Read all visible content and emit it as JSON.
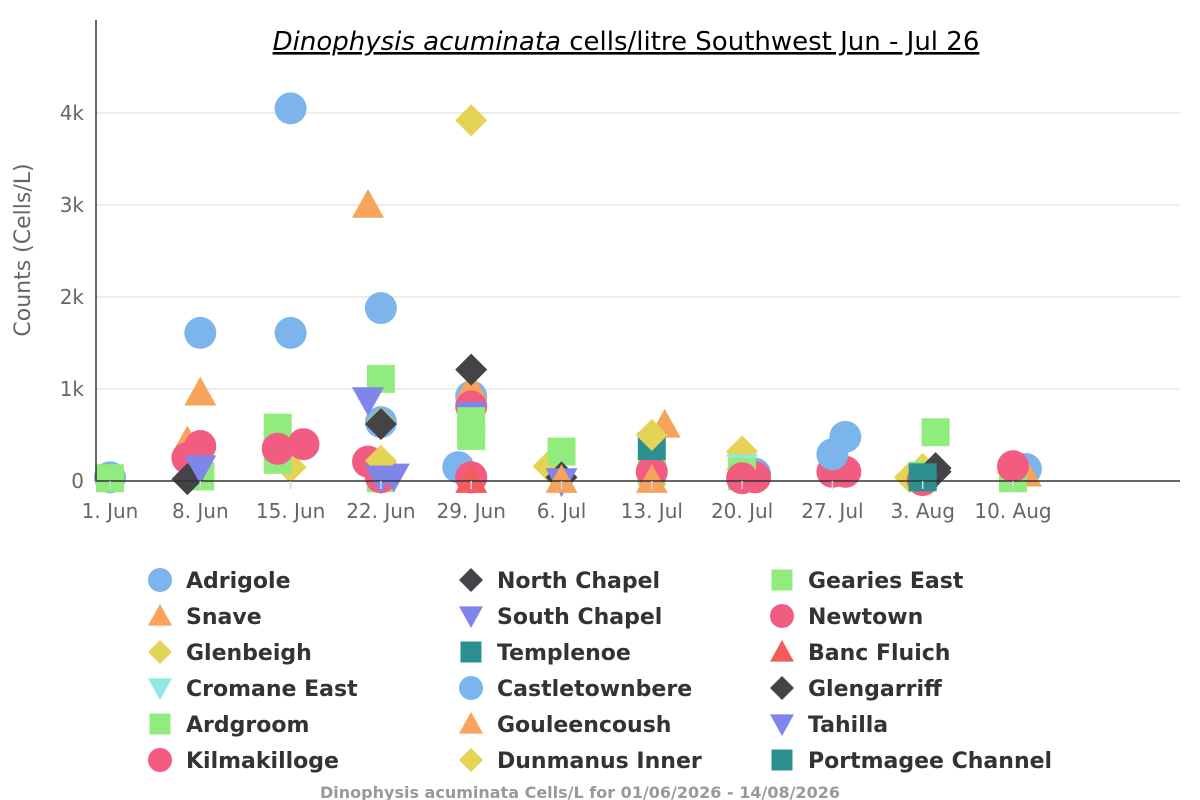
{
  "chart_data": {
    "type": "scatter",
    "title_italic": "Dinophysis acuminata",
    "title_rest": " cells/litre Southwest Jun - Jul 26",
    "xlabel": "",
    "ylabel": "Counts (Cells/L)",
    "footer": "Dinophysis acuminata Cells/L for 01/06/2026 - 14/08/2026",
    "x_ticks": [
      {
        "date": "2026-06-01",
        "label": "1. Jun"
      },
      {
        "date": "2026-06-08",
        "label": "8. Jun"
      },
      {
        "date": "2026-06-15",
        "label": "15. Jun"
      },
      {
        "date": "2026-06-22",
        "label": "22. Jun"
      },
      {
        "date": "2026-06-29",
        "label": "29. Jun"
      },
      {
        "date": "2026-07-06",
        "label": "6. Jul"
      },
      {
        "date": "2026-07-13",
        "label": "13. Jul"
      },
      {
        "date": "2026-07-20",
        "label": "20. Jul"
      },
      {
        "date": "2026-07-27",
        "label": "27. Jul"
      },
      {
        "date": "2026-08-03",
        "label": "3. Aug"
      },
      {
        "date": "2026-08-10",
        "label": "10. Aug"
      }
    ],
    "y_ticks": [
      {
        "value": 0,
        "label": "0"
      },
      {
        "value": 1000,
        "label": "1k"
      },
      {
        "value": 2000,
        "label": "2k"
      },
      {
        "value": 3000,
        "label": "3k"
      },
      {
        "value": 4000,
        "label": "4k"
      }
    ],
    "xlim": [
      "2026-06-01",
      "2026-08-14"
    ],
    "ylim": [
      0,
      5000
    ],
    "grid": "horizontal",
    "legend_position": "bottom",
    "series": [
      {
        "name": "Adrigole",
        "marker": "circle",
        "color": "#7cb5ec",
        "points": [
          {
            "x": "2026-06-01",
            "y": 40
          },
          {
            "x": "2026-06-08",
            "y": 1610
          },
          {
            "x": "2026-06-15",
            "y": 4050
          },
          {
            "x": "2026-06-15",
            "y": 1610
          },
          {
            "x": "2026-06-22",
            "y": 1880
          },
          {
            "x": "2026-06-22",
            "y": 640
          },
          {
            "x": "2026-06-29",
            "y": 920
          },
          {
            "x": "2026-06-28",
            "y": 150
          },
          {
            "x": "2026-07-21",
            "y": 80
          },
          {
            "x": "2026-07-28",
            "y": 480
          },
          {
            "x": "2026-08-11",
            "y": 130
          }
        ]
      },
      {
        "name": "Snave",
        "marker": "triangle",
        "color": "#f7a35c",
        "points": [
          {
            "x": "2026-06-08",
            "y": 960
          },
          {
            "x": "2026-06-07",
            "y": 430
          },
          {
            "x": "2026-06-21",
            "y": 3000
          },
          {
            "x": "2026-06-29",
            "y": 1020
          },
          {
            "x": "2026-07-14",
            "y": 610
          },
          {
            "x": "2026-08-11",
            "y": 80
          }
        ]
      },
      {
        "name": "Glenbeigh",
        "marker": "diamond",
        "color": "#e4d354",
        "points": [
          {
            "x": "2026-06-14",
            "y": 400
          },
          {
            "x": "2026-06-15",
            "y": 150
          },
          {
            "x": "2026-06-22",
            "y": 630
          },
          {
            "x": "2026-06-22",
            "y": 200
          },
          {
            "x": "2026-06-29",
            "y": 3920
          },
          {
            "x": "2026-07-05",
            "y": 160
          },
          {
            "x": "2026-07-20",
            "y": 320
          },
          {
            "x": "2026-07-20",
            "y": 130
          },
          {
            "x": "2026-07-27",
            "y": 250
          },
          {
            "x": "2026-08-02",
            "y": 40
          },
          {
            "x": "2026-08-03",
            "y": 130
          },
          {
            "x": "2026-08-10",
            "y": 90
          }
        ]
      },
      {
        "name": "Cromane East",
        "marker": "triangle-down",
        "color": "#91e8e1",
        "points": [
          {
            "x": "2026-07-20",
            "y": 150
          }
        ]
      },
      {
        "name": "Ardgroom",
        "marker": "square",
        "color": "#90ed7d",
        "points": [
          {
            "x": "2026-06-01",
            "y": 30
          },
          {
            "x": "2026-06-08",
            "y": 50
          },
          {
            "x": "2026-06-14",
            "y": 580
          },
          {
            "x": "2026-06-14",
            "y": 230
          },
          {
            "x": "2026-06-22",
            "y": 1110
          },
          {
            "x": "2026-06-22",
            "y": 30
          },
          {
            "x": "2026-06-29",
            "y": 490
          },
          {
            "x": "2026-07-06",
            "y": 320
          },
          {
            "x": "2026-07-13",
            "y": 100
          },
          {
            "x": "2026-07-20",
            "y": 50
          },
          {
            "x": "2026-08-03",
            "y": 60
          },
          {
            "x": "2026-08-10",
            "y": 30
          }
        ]
      },
      {
        "name": "Kilmakilloge",
        "marker": "circle",
        "color": "#f15c80",
        "points": [
          {
            "x": "2026-06-07",
            "y": 250
          },
          {
            "x": "2026-06-08",
            "y": 380
          },
          {
            "x": "2026-06-14",
            "y": 350
          },
          {
            "x": "2026-06-16",
            "y": 400
          },
          {
            "x": "2026-06-21",
            "y": 210
          },
          {
            "x": "2026-06-22",
            "y": 40
          },
          {
            "x": "2026-06-29",
            "y": 810
          },
          {
            "x": "2026-06-29",
            "y": 40
          },
          {
            "x": "2026-07-13",
            "y": 100
          },
          {
            "x": "2026-07-21",
            "y": 40
          },
          {
            "x": "2026-07-27",
            "y": 100
          },
          {
            "x": "2026-07-28",
            "y": 100
          },
          {
            "x": "2026-08-03",
            "y": 10
          },
          {
            "x": "2026-08-10",
            "y": 160
          }
        ]
      },
      {
        "name": "North Chapel",
        "marker": "diamond",
        "color": "#434348",
        "points": [
          {
            "x": "2026-06-07",
            "y": 20
          },
          {
            "x": "2026-06-29",
            "y": 1210
          },
          {
            "x": "2026-07-06",
            "y": 40
          },
          {
            "x": "2026-08-04",
            "y": 140
          }
        ]
      },
      {
        "name": "South Chapel",
        "marker": "triangle-down",
        "color": "#8085e9",
        "points": [
          {
            "x": "2026-06-08",
            "y": 140
          },
          {
            "x": "2026-06-21",
            "y": 880
          },
          {
            "x": "2026-06-23",
            "y": 50
          },
          {
            "x": "2026-06-29",
            "y": 720
          },
          {
            "x": "2026-07-06",
            "y": 0
          }
        ]
      },
      {
        "name": "Templenoe",
        "marker": "square",
        "color": "#2b908f",
        "points": [
          {
            "x": "2026-07-13",
            "y": 380
          }
        ]
      },
      {
        "name": "Castletownbere",
        "marker": "circle",
        "color": "#7cb5ec",
        "points": [
          {
            "x": "2026-07-27",
            "y": 290
          }
        ]
      },
      {
        "name": "Gouleencoush",
        "marker": "triangle",
        "color": "#f7a35c",
        "points": [
          {
            "x": "2026-07-06",
            "y": 10
          },
          {
            "x": "2026-07-13",
            "y": 10
          }
        ]
      },
      {
        "name": "Dunmanus Inner",
        "marker": "diamond",
        "color": "#e4d354",
        "points": [
          {
            "x": "2026-06-22",
            "y": 220
          },
          {
            "x": "2026-07-13",
            "y": 500
          }
        ]
      },
      {
        "name": "Gearies East",
        "marker": "square",
        "color": "#90ed7d",
        "points": [
          {
            "x": "2026-06-29",
            "y": 650
          },
          {
            "x": "2026-07-20",
            "y": 100
          },
          {
            "x": "2026-08-04",
            "y": 530
          }
        ]
      },
      {
        "name": "Newtown",
        "marker": "circle",
        "color": "#f15c80",
        "points": [
          {
            "x": "2026-06-29",
            "y": 40
          },
          {
            "x": "2026-07-20",
            "y": 30
          }
        ]
      },
      {
        "name": "Banc Fluich",
        "marker": "triangle",
        "color": "#f45b5b",
        "points": [
          {
            "x": "2026-06-29",
            "y": 10
          }
        ]
      },
      {
        "name": "Glengarriff",
        "marker": "diamond",
        "color": "#434348",
        "points": [
          {
            "x": "2026-06-22",
            "y": 620
          },
          {
            "x": "2026-08-04",
            "y": 100
          }
        ]
      },
      {
        "name": "Tahilla",
        "marker": "triangle-down",
        "color": "#8085e9",
        "points": [
          {
            "x": "2026-06-22",
            "y": 30
          }
        ]
      },
      {
        "name": "Portmagee Channel",
        "marker": "square",
        "color": "#2b908f",
        "points": [
          {
            "x": "2026-08-03",
            "y": 40
          }
        ]
      }
    ]
  }
}
